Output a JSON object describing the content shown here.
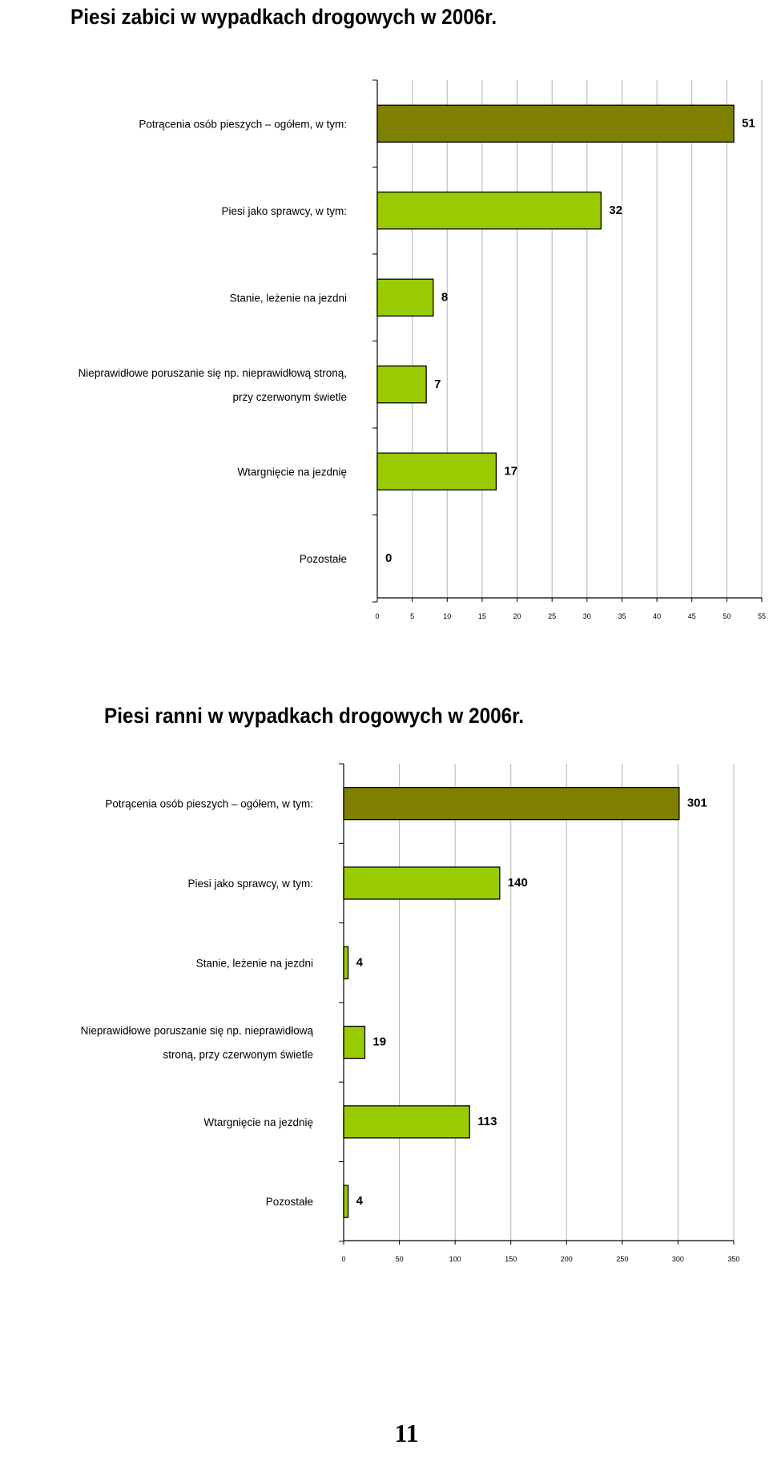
{
  "chart_data": [
    {
      "type": "bar",
      "orientation": "horizontal",
      "title": "Piesi zabici w wypadkach drogowych w 2006r.",
      "categories": [
        [
          "Potrącenia osób pieszych – ogółem, w tym:"
        ],
        [
          "Piesi jako sprawcy, w tym:"
        ],
        [
          "Stanie, leżenie na jezdni"
        ],
        [
          "Nieprawidłowe poruszanie się np. nieprawidłową stroną,",
          "przy czerwonym świetle"
        ],
        [
          "Wtargnięcie na jezdnię"
        ],
        [
          "Pozostałe"
        ]
      ],
      "values": [
        51,
        32,
        8,
        7,
        17,
        0
      ],
      "xlim": [
        0,
        55
      ],
      "xticks": [
        0,
        5,
        10,
        15,
        20,
        25,
        30,
        35,
        40,
        45,
        50,
        55
      ],
      "grid": "vertical",
      "bar_colors": [
        "#808000",
        "#99cc00",
        "#99cc00",
        "#99cc00",
        "#99cc00",
        "#99cc00"
      ]
    },
    {
      "type": "bar",
      "orientation": "horizontal",
      "title": "Piesi ranni w wypadkach drogowych w 2006r.",
      "categories": [
        [
          "Potrącenia osób pieszych – ogółem, w tym:"
        ],
        [
          "Piesi jako sprawcy, w tym:"
        ],
        [
          "Stanie, leżenie na jezdni"
        ],
        [
          "Nieprawidłowe poruszanie się np. nieprawidłową",
          "stroną, przy czerwonym świetle"
        ],
        [
          "Wtargnięcie na jezdnię"
        ],
        [
          "Pozostałe"
        ]
      ],
      "values": [
        301,
        140,
        4,
        19,
        113,
        4
      ],
      "xlim": [
        0,
        350
      ],
      "xticks": [
        0,
        50,
        100,
        150,
        200,
        250,
        300,
        350
      ],
      "grid": "vertical",
      "bar_colors": [
        "#808000",
        "#99cc00",
        "#99cc00",
        "#99cc00",
        "#99cc00",
        "#99cc00"
      ]
    }
  ],
  "page_number": "11"
}
